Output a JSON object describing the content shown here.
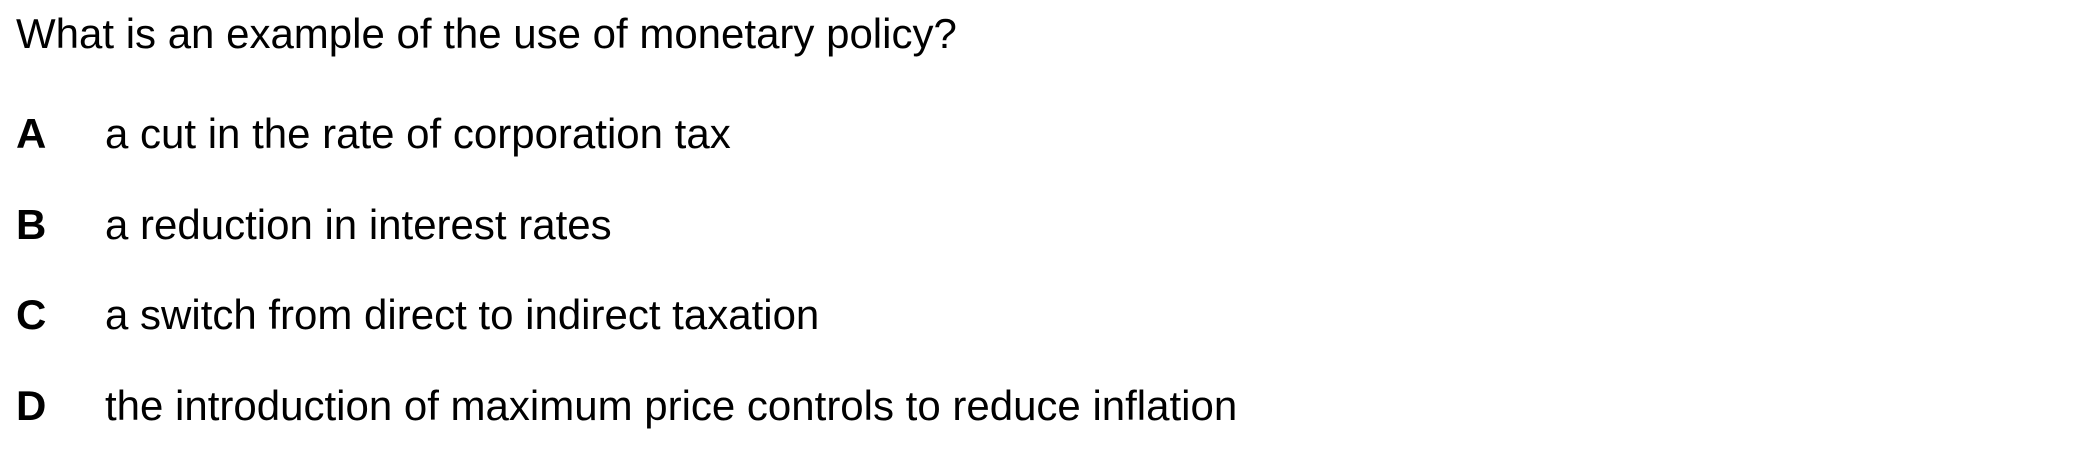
{
  "question": {
    "text": "What is an example of the use of monetary policy?"
  },
  "options": [
    {
      "letter": "A",
      "text": "a cut in the rate of corporation tax"
    },
    {
      "letter": "B",
      "text": "a reduction in interest rates"
    },
    {
      "letter": "C",
      "text": "a switch from direct to indirect taxation"
    },
    {
      "letter": "D",
      "text": "the introduction of maximum price controls to reduce inflation"
    }
  ]
}
